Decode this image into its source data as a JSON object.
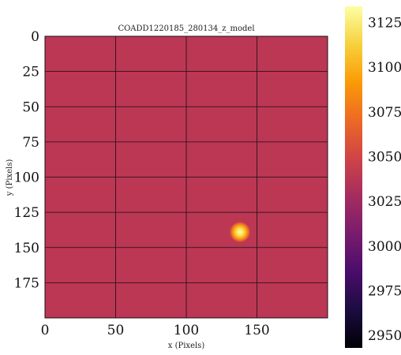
{
  "chart_data": {
    "type": "heatmap",
    "title": "COADD1220185_280134_z_model",
    "xlabel": "x (Pixels)",
    "ylabel": "y (Pixels)",
    "xlim": [
      0,
      200
    ],
    "ylim": [
      200,
      0
    ],
    "xticks": [
      0,
      50,
      100,
      150
    ],
    "yticks": [
      0,
      25,
      50,
      75,
      100,
      125,
      150,
      175
    ],
    "grid": true,
    "colormap": "inferno",
    "background_value": 3030,
    "source": {
      "x": 138,
      "y": 139,
      "peak_value": 3135
    },
    "colorbar": {
      "range": [
        2943,
        3134
      ],
      "ticks": [
        2950,
        2975,
        3000,
        3025,
        3050,
        3075,
        3100,
        3125
      ]
    },
    "colors": {
      "background": "#bb3754",
      "grid": "#1a0f14",
      "inferno_stops": [
        "#000004",
        "#1b0c41",
        "#4a0c6b",
        "#781c6d",
        "#a52c60",
        "#cf4446",
        "#ed6925",
        "#fb9b06",
        "#f7d13d",
        "#fcffa4"
      ]
    }
  }
}
